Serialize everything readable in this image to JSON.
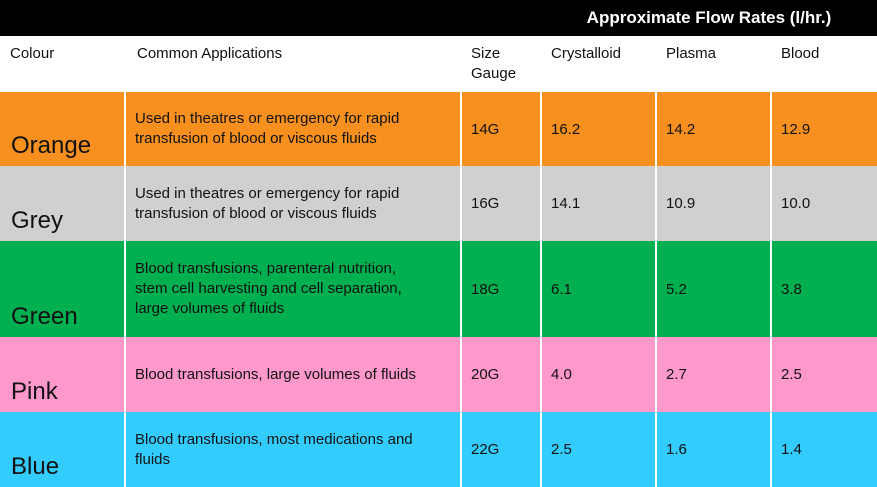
{
  "header": {
    "banner": "Approximate Flow Rates (l/hr.)",
    "colour": "Colour",
    "applications": "Common Applications",
    "gauge_line1": "Size",
    "gauge_line2": "Gauge",
    "crystalloid": "Crystalloid",
    "plasma": "Plasma",
    "blood": "Blood"
  },
  "rows": [
    {
      "colour": "Orange",
      "bg": "#f7901e",
      "app_line1": "Used in theatres or emergency for rapid",
      "app_line2": "transfusion of blood or viscous fluids",
      "app_line3": "",
      "gauge": "14G",
      "crystalloid": "16.2",
      "plasma": "14.2",
      "blood": "12.9"
    },
    {
      "colour": "Grey",
      "bg": "#d0d0d0",
      "app_line1": "Used in theatres or emergency for rapid",
      "app_line2": "transfusion of blood or viscous fluids",
      "app_line3": "",
      "gauge": "16G",
      "crystalloid": "14.1",
      "plasma": "10.9",
      "blood": "10.0"
    },
    {
      "colour": "Green",
      "bg": "#00b050",
      "app_line1": "Blood transfusions, parenteral nutrition,",
      "app_line2": "stem cell harvesting and cell separation,",
      "app_line3": "large volumes of fluids",
      "gauge": "18G",
      "crystalloid": "6.1",
      "plasma": "5.2",
      "blood": "3.8"
    },
    {
      "colour": "Pink",
      "bg": "#ff99cc",
      "app_line1": "Blood transfusions, large volumes of fluids",
      "app_line2": "",
      "app_line3": "",
      "gauge": "20G",
      "crystalloid": "4.0",
      "plasma": "2.7",
      "blood": "2.5"
    },
    {
      "colour": "Blue",
      "bg": "#33ccff",
      "app_line1": "Blood transfusions, most medications and",
      "app_line2": "fluids",
      "app_line3": "",
      "gauge": "22G",
      "crystalloid": "2.5",
      "plasma": "1.6",
      "blood": "1.4"
    }
  ]
}
